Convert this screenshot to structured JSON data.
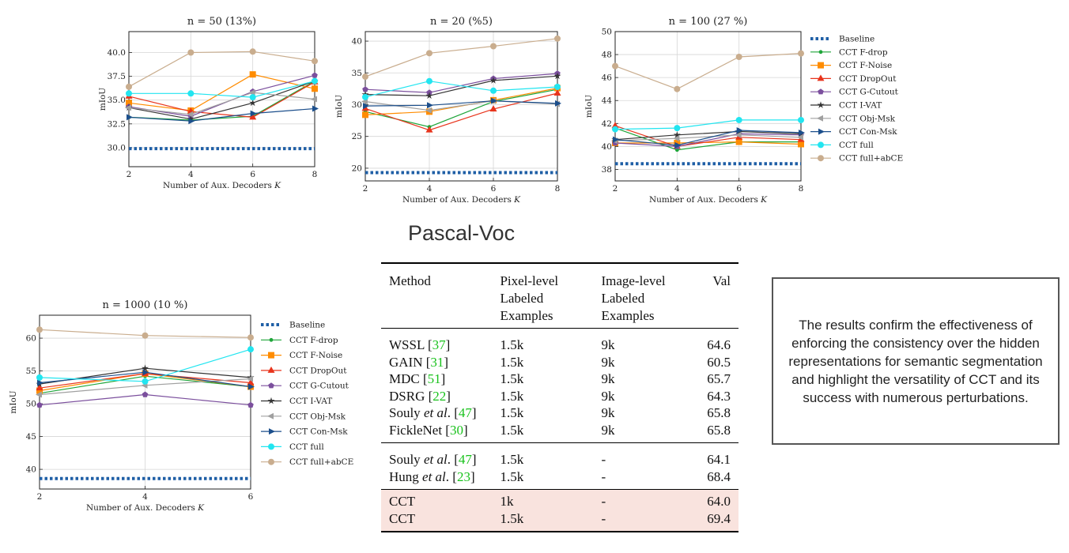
{
  "heading": "Pascal-Voc",
  "note": "The results confirm the effectiveness of enforcing the consistency over the hidden representations for semantic segmentation and highlight the versatility of CCT and its success with numerous perturbations.",
  "legend": [
    {
      "name": "Baseline",
      "color": "#1f5fa6",
      "marker": "dotted-line"
    },
    {
      "name": "CCT F-drop",
      "color": "#1fa53a",
      "marker": "dot"
    },
    {
      "name": "CCT F-Noise",
      "color": "#ff8c00",
      "marker": "square"
    },
    {
      "name": "CCT DropOut",
      "color": "#e8341c",
      "marker": "triangle-up"
    },
    {
      "name": "CCT G-Cutout",
      "color": "#7b4f9d",
      "marker": "pentagon"
    },
    {
      "name": "CCT I-VAT",
      "color": "#333333",
      "marker": "star"
    },
    {
      "name": "CCT Obj-Msk",
      "color": "#a0a0a0",
      "marker": "triangle-left"
    },
    {
      "name": "CCT Con-Msk",
      "color": "#1c4f8c",
      "marker": "triangle-right"
    },
    {
      "name": "CCT full",
      "color": "#22e5f0",
      "marker": "circle"
    },
    {
      "name": "CCT full+abCE",
      "color": "#c9ad8e",
      "marker": "circle"
    }
  ],
  "chart_data": [
    {
      "type": "line",
      "title": "n = 50 (13%)",
      "xlabel": "Number of Aux. Decoders K",
      "ylabel": "mIoU",
      "x": [
        2,
        4,
        6,
        8
      ],
      "xlim": [
        2,
        8
      ],
      "ylim": [
        28,
        42.2
      ],
      "yticks": [
        "30.0",
        "32.5",
        "35.0",
        "37.5",
        "40.0"
      ],
      "ytick_values": [
        30,
        32.5,
        35,
        37.5,
        40
      ],
      "xticks": [
        "2",
        "4",
        "6",
        "8"
      ],
      "grid": true,
      "series": [
        {
          "name": "Baseline",
          "values": [
            29.9,
            29.9,
            29.9,
            29.9
          ]
        },
        {
          "name": "CCT F-drop",
          "values": [
            33.2,
            32.9,
            33.3,
            37.0
          ]
        },
        {
          "name": "CCT F-Noise",
          "values": [
            34.7,
            33.9,
            37.7,
            36.2
          ]
        },
        {
          "name": "CCT DropOut",
          "values": [
            35.4,
            33.8,
            33.2,
            36.9
          ]
        },
        {
          "name": "CCT G-Cutout",
          "values": [
            34.3,
            33.3,
            35.9,
            37.6
          ]
        },
        {
          "name": "CCT I-VAT",
          "values": [
            34.2,
            33.0,
            34.7,
            37.0
          ]
        },
        {
          "name": "CCT Obj-Msk",
          "values": [
            34.2,
            33.5,
            35.8,
            35.1
          ]
        },
        {
          "name": "CCT Con-Msk",
          "values": [
            33.2,
            32.8,
            33.6,
            34.1
          ]
        },
        {
          "name": "CCT full",
          "values": [
            35.7,
            35.7,
            35.3,
            37.0
          ]
        },
        {
          "name": "CCT full+abCE",
          "values": [
            36.4,
            40.0,
            40.1,
            39.1
          ]
        }
      ]
    },
    {
      "type": "line",
      "title": "n = 20 (%5)",
      "xlabel": "Number of Aux. Decoders K",
      "ylabel": "mIoU",
      "x": [
        2,
        4,
        6,
        8
      ],
      "xlim": [
        2,
        8
      ],
      "ylim": [
        18,
        41.5
      ],
      "yticks": [
        "20",
        "25",
        "30",
        "35",
        "40"
      ],
      "ytick_values": [
        20,
        25,
        30,
        35,
        40
      ],
      "xticks": [
        "2",
        "4",
        "6",
        "8"
      ],
      "grid": true,
      "series": [
        {
          "name": "Baseline",
          "values": [
            19.3,
            19.3,
            19.3,
            19.3
          ]
        },
        {
          "name": "CCT F-drop",
          "values": [
            28.9,
            26.5,
            30.5,
            32.4
          ]
        },
        {
          "name": "CCT F-Noise",
          "values": [
            28.4,
            28.9,
            30.7,
            32.6
          ]
        },
        {
          "name": "CCT DropOut",
          "values": [
            29.4,
            26.0,
            29.3,
            31.8
          ]
        },
        {
          "name": "CCT G-Cutout",
          "values": [
            32.4,
            31.9,
            34.1,
            34.9
          ]
        },
        {
          "name": "CCT I-VAT",
          "values": [
            31.6,
            31.4,
            33.8,
            34.5
          ]
        },
        {
          "name": "CCT Obj-Msk",
          "values": [
            30.5,
            29.1,
            30.6,
            30.1
          ]
        },
        {
          "name": "CCT Con-Msk",
          "values": [
            29.8,
            29.9,
            30.6,
            30.2
          ]
        },
        {
          "name": "CCT full",
          "values": [
            31.2,
            33.7,
            32.2,
            32.8
          ]
        },
        {
          "name": "CCT full+abCE",
          "values": [
            34.4,
            38.1,
            39.2,
            40.4
          ]
        }
      ]
    },
    {
      "type": "line",
      "title": "n = 100 (27 %)",
      "xlabel": "Number of Aux. Decoders K",
      "ylabel": "mIoU",
      "x": [
        2,
        4,
        6,
        8
      ],
      "xlim": [
        2,
        8
      ],
      "ylim": [
        37,
        50
      ],
      "yticks": [
        "38",
        "40",
        "42",
        "44",
        "46",
        "48",
        "50"
      ],
      "ytick_values": [
        38,
        40,
        42,
        44,
        46,
        48,
        50
      ],
      "xticks": [
        "2",
        "4",
        "6",
        "8"
      ],
      "grid": true,
      "series": [
        {
          "name": "Baseline",
          "values": [
            38.5,
            38.5,
            38.5,
            38.5
          ]
        },
        {
          "name": "CCT F-drop",
          "values": [
            41.6,
            39.7,
            40.4,
            40.4
          ]
        },
        {
          "name": "CCT F-Noise",
          "values": [
            40.3,
            40.3,
            40.4,
            40.2
          ]
        },
        {
          "name": "CCT DropOut",
          "values": [
            41.8,
            40.0,
            40.8,
            40.6
          ]
        },
        {
          "name": "CCT G-Cutout",
          "values": [
            40.3,
            40.0,
            41.1,
            41.0
          ]
        },
        {
          "name": "CCT I-VAT",
          "values": [
            40.6,
            41.0,
            41.3,
            41.1
          ]
        },
        {
          "name": "CCT Obj-Msk",
          "values": [
            40.5,
            40.7,
            41.0,
            40.8
          ]
        },
        {
          "name": "CCT Con-Msk",
          "values": [
            40.6,
            40.1,
            41.4,
            41.2
          ]
        },
        {
          "name": "CCT full",
          "values": [
            41.5,
            41.6,
            42.3,
            42.3
          ]
        },
        {
          "name": "CCT full+abCE",
          "values": [
            47.0,
            45.0,
            47.8,
            48.1
          ]
        }
      ]
    },
    {
      "type": "line",
      "title": "n = 1000 (10 %)",
      "xlabel": "Number of Aux. Decoders K",
      "ylabel": "mIoU",
      "x": [
        2,
        4,
        6
      ],
      "xlim": [
        2,
        6
      ],
      "ylim": [
        37,
        63.5
      ],
      "yticks": [
        "40",
        "45",
        "50",
        "55",
        "60"
      ],
      "ytick_values": [
        40,
        45,
        50,
        55,
        60
      ],
      "xticks": [
        "2",
        "4",
        "6"
      ],
      "grid": true,
      "series": [
        {
          "name": "Baseline",
          "values": [
            38.6,
            38.6,
            38.6
          ]
        },
        {
          "name": "CCT F-drop",
          "values": [
            51.6,
            54.2,
            52.6
          ]
        },
        {
          "name": "CCT F-Noise",
          "values": [
            52.0,
            54.6,
            52.6
          ]
        },
        {
          "name": "CCT DropOut",
          "values": [
            52.4,
            54.6,
            53.2
          ]
        },
        {
          "name": "CCT G-Cutout",
          "values": [
            49.8,
            51.4,
            49.8
          ]
        },
        {
          "name": "CCT I-VAT",
          "values": [
            53.0,
            55.4,
            54.0
          ]
        },
        {
          "name": "CCT Obj-Msk",
          "values": [
            51.4,
            52.8,
            53.8
          ]
        },
        {
          "name": "CCT Con-Msk",
          "values": [
            53.2,
            54.8,
            52.6
          ]
        },
        {
          "name": "CCT full",
          "values": [
            54.0,
            53.4,
            58.3
          ]
        },
        {
          "name": "CCT full+abCE",
          "values": [
            61.3,
            60.4,
            60.1
          ]
        }
      ]
    }
  ],
  "table": {
    "headers": [
      "Method",
      "Pixel-level Labeled Examples",
      "Image-level Labeled Examples",
      "Val"
    ],
    "groups": [
      [
        {
          "method": "WSSL",
          "ref": "37",
          "pixel": "1.5k",
          "image": "9k",
          "val": "64.6"
        },
        {
          "method": "GAIN",
          "ref": "31",
          "pixel": "1.5k",
          "image": "9k",
          "val": "60.5"
        },
        {
          "method": "MDC",
          "ref": "51",
          "pixel": "1.5k",
          "image": "9k",
          "val": "65.7"
        },
        {
          "method": "DSRG",
          "ref": "22",
          "pixel": "1.5k",
          "image": "9k",
          "val": "64.3"
        },
        {
          "method": "Souly",
          "etal": "et al",
          "ref": "47",
          "pixel": "1.5k",
          "image": "9k",
          "val": "65.8"
        },
        {
          "method": "FickleNet",
          "ref": "30",
          "pixel": "1.5k",
          "image": "9k",
          "val": "65.8"
        }
      ],
      [
        {
          "method": "Souly",
          "etal": "et al",
          "ref": "47",
          "pixel": "1.5k",
          "image": "-",
          "val": "64.1"
        },
        {
          "method": "Hung",
          "etal": "et al",
          "ref": "23",
          "pixel": "1.5k",
          "image": "-",
          "val": "68.4"
        }
      ],
      [
        {
          "method": "CCT",
          "pixel": "1k",
          "image": "-",
          "val": "64.0"
        },
        {
          "method": "CCT",
          "pixel": "1.5k",
          "image": "-",
          "val": "69.4"
        }
      ]
    ]
  }
}
